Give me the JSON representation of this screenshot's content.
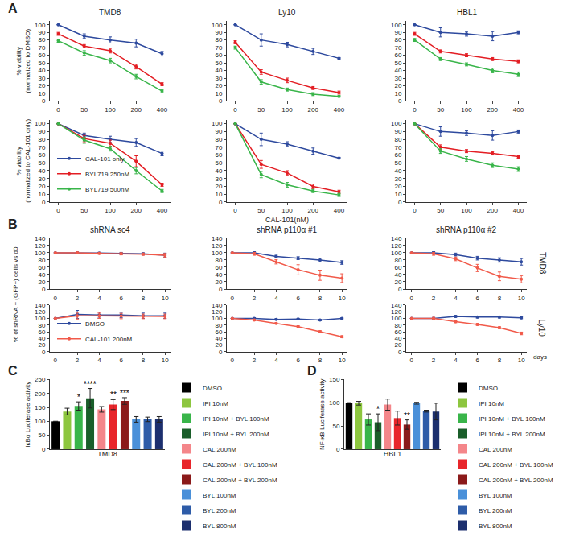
{
  "chart_data": [
    {
      "type": "line",
      "title": "TMD8",
      "categories": [
        "0",
        "50",
        "100",
        "200",
        "400"
      ],
      "ylim": [
        0,
        105
      ],
      "yticks": [
        0,
        10,
        20,
        30,
        40,
        50,
        60,
        70,
        80,
        90,
        100
      ],
      "grid": false,
      "marker": "circle",
      "ylabel": "% viability\n(normalized to DMSO)",
      "annotations": [
        "A"
      ],
      "series": [
        {
          "name": "CAL-101 only",
          "color": "#2e4a9e",
          "values": [
            100,
            85,
            80,
            76,
            62
          ],
          "errors": [
            0,
            3,
            4,
            5,
            3
          ]
        },
        {
          "name": "BYL719 250nM",
          "color": "#e31e24",
          "values": [
            88,
            72,
            66,
            45,
            22
          ],
          "errors": [
            2,
            2,
            3,
            3,
            2
          ]
        },
        {
          "name": "BYL719 500nM",
          "color": "#39b54a",
          "values": [
            79,
            63,
            53,
            32,
            13
          ],
          "errors": [
            2,
            3,
            3,
            3,
            2
          ]
        }
      ]
    },
    {
      "type": "line",
      "title": "Ly10",
      "categories": [
        "0",
        "50",
        "100",
        "200",
        "400"
      ],
      "ylim": [
        0,
        105
      ],
      "yticks": [
        0,
        10,
        20,
        30,
        40,
        50,
        60,
        70,
        80,
        90,
        100
      ],
      "grid": false,
      "marker": "circle",
      "series": [
        {
          "name": "CAL-101 only",
          "color": "#2e4a9e",
          "values": [
            100,
            80,
            74,
            65,
            56
          ],
          "errors": [
            0,
            8,
            3,
            4,
            1
          ]
        },
        {
          "name": "BYL719 250nM",
          "color": "#e31e24",
          "values": [
            77,
            38,
            27,
            17,
            11
          ],
          "errors": [
            2,
            3,
            3,
            2,
            2
          ]
        },
        {
          "name": "BYL719 500nM",
          "color": "#39b54a",
          "values": [
            70,
            25,
            15,
            9,
            6
          ],
          "errors": [
            2,
            3,
            2,
            2,
            1
          ]
        }
      ]
    },
    {
      "type": "line",
      "title": "HBL1",
      "categories": [
        "0",
        "50",
        "100",
        "200",
        "400"
      ],
      "ylim": [
        0,
        105
      ],
      "yticks": [
        0,
        10,
        20,
        30,
        40,
        50,
        60,
        70,
        80,
        90,
        100
      ],
      "grid": false,
      "marker": "circle",
      "series": [
        {
          "name": "CAL-101 only",
          "color": "#2e4a9e",
          "values": [
            100,
            90,
            88,
            85,
            90
          ],
          "errors": [
            0,
            6,
            3,
            6,
            2
          ]
        },
        {
          "name": "BYL719 250nM",
          "color": "#e31e24",
          "values": [
            88,
            65,
            60,
            55,
            52
          ],
          "errors": [
            2,
            2,
            2,
            2,
            2
          ]
        },
        {
          "name": "BYL719 500nM",
          "color": "#39b54a",
          "values": [
            80,
            55,
            48,
            40,
            35
          ],
          "errors": [
            2,
            2,
            2,
            3,
            3
          ]
        }
      ]
    },
    {
      "type": "line",
      "categories": [
        "0",
        "50",
        "100",
        "200",
        "400"
      ],
      "ylim": [
        0,
        105
      ],
      "yticks": [
        0,
        10,
        20,
        30,
        40,
        50,
        60,
        70,
        80,
        90,
        100
      ],
      "grid": false,
      "marker": "circle",
      "ylabel": "% viability\n(normalized to CAL-101 only)",
      "legend": "lower left",
      "series": [
        {
          "name": "CAL-101 only",
          "color": "#2e4a9e",
          "values": [
            100,
            85,
            80,
            76,
            62
          ],
          "errors": [
            0,
            3,
            4,
            5,
            3
          ]
        },
        {
          "name": "BYL719 250nM",
          "color": "#e31e24",
          "values": [
            100,
            81,
            75,
            52,
            22
          ],
          "errors": [
            0,
            4,
            4,
            7,
            2
          ]
        },
        {
          "name": "BYL719 500nM",
          "color": "#39b54a",
          "values": [
            100,
            79,
            68,
            40,
            14
          ],
          "errors": [
            0,
            4,
            3,
            4,
            2
          ]
        }
      ]
    },
    {
      "type": "line",
      "categories": [
        "0",
        "50",
        "100",
        "200",
        "400"
      ],
      "ylim": [
        0,
        105
      ],
      "yticks": [
        0,
        10,
        20,
        30,
        40,
        50,
        60,
        70,
        80,
        90,
        100
      ],
      "grid": false,
      "marker": "circle",
      "xlabel": "CAL-101(nM)",
      "series": [
        {
          "name": "CAL-101 only",
          "color": "#2e4a9e",
          "values": [
            100,
            80,
            74,
            65,
            56
          ],
          "errors": [
            0,
            8,
            3,
            4,
            1
          ]
        },
        {
          "name": "BYL719 250nM",
          "color": "#e31e24",
          "values": [
            100,
            48,
            37,
            20,
            13
          ],
          "errors": [
            0,
            5,
            3,
            3,
            2
          ]
        },
        {
          "name": "BYL719 500nM",
          "color": "#39b54a",
          "values": [
            100,
            35,
            22,
            14,
            9
          ],
          "errors": [
            0,
            4,
            3,
            2,
            2
          ]
        }
      ]
    },
    {
      "type": "line",
      "categories": [
        "0",
        "50",
        "100",
        "200",
        "400"
      ],
      "ylim": [
        0,
        105
      ],
      "yticks": [
        0,
        10,
        20,
        30,
        40,
        50,
        60,
        70,
        80,
        90,
        100
      ],
      "grid": false,
      "marker": "circle",
      "series": [
        {
          "name": "CAL-101 only",
          "color": "#2e4a9e",
          "values": [
            100,
            90,
            88,
            85,
            90
          ],
          "errors": [
            0,
            6,
            3,
            6,
            2
          ]
        },
        {
          "name": "BYL719 250nM",
          "color": "#e31e24",
          "values": [
            100,
            70,
            65,
            62,
            58
          ],
          "errors": [
            0,
            3,
            2,
            2,
            2
          ]
        },
        {
          "name": "BYL719 500nM",
          "color": "#39b54a",
          "values": [
            100,
            65,
            55,
            47,
            42
          ],
          "errors": [
            0,
            3,
            3,
            3,
            3
          ]
        }
      ]
    },
    {
      "type": "line",
      "title": "shRNA sc4",
      "x": [
        0,
        2,
        4,
        6,
        8,
        10
      ],
      "xlim": [
        -0.5,
        10.5
      ],
      "xticks": [
        0,
        2,
        4,
        6,
        8,
        10
      ],
      "ylim": [
        0,
        140
      ],
      "yticks": [
        0,
        20,
        40,
        60,
        80,
        100,
        120,
        140
      ],
      "grid": false,
      "marker": "circle",
      "ylabel": "% of shRNA + (GFP+) cells vs d0",
      "annotations": [
        "B"
      ],
      "series": [
        {
          "name": "DMSO",
          "color": "#2e4a9e",
          "values": [
            100,
            100,
            99,
            98,
            97,
            93
          ],
          "errors": [
            0,
            2,
            2,
            3,
            3,
            6
          ]
        },
        {
          "name": "CAL-101 200nM",
          "color": "#f15a4a",
          "values": [
            100,
            100,
            98,
            97,
            96,
            93
          ],
          "errors": [
            0,
            2,
            2,
            3,
            3,
            5
          ]
        }
      ]
    },
    {
      "type": "line",
      "title": "shRNA p110α #1",
      "x": [
        0,
        2,
        4,
        6,
        8,
        10
      ],
      "xlim": [
        -0.5,
        10.5
      ],
      "xticks": [
        0,
        2,
        4,
        6,
        8,
        10
      ],
      "ylim": [
        0,
        140
      ],
      "yticks": [
        0,
        20,
        40,
        60,
        80,
        100,
        120,
        140
      ],
      "grid": false,
      "marker": "circle",
      "series": [
        {
          "name": "DMSO",
          "color": "#2e4a9e",
          "values": [
            100,
            100,
            90,
            85,
            80,
            73
          ],
          "errors": [
            0,
            3,
            3,
            4,
            5,
            5
          ]
        },
        {
          "name": "CAL-101 200nM",
          "color": "#f15a4a",
          "values": [
            100,
            97,
            75,
            53,
            38,
            30
          ],
          "errors": [
            0,
            4,
            6,
            14,
            14,
            12
          ]
        }
      ]
    },
    {
      "type": "line",
      "title": "shRNA p110α #2",
      "x": [
        0,
        2,
        4,
        6,
        8,
        10
      ],
      "xlim": [
        -0.5,
        10.5
      ],
      "xticks": [
        0,
        2,
        4,
        6,
        8,
        10
      ],
      "ylim": [
        0,
        140
      ],
      "yticks": [
        0,
        20,
        40,
        60,
        80,
        100,
        120,
        140
      ],
      "grid": false,
      "marker": "circle",
      "annotations": [
        "TMD8"
      ],
      "series": [
        {
          "name": "DMSO",
          "color": "#2e4a9e",
          "values": [
            100,
            100,
            95,
            85,
            80,
            75
          ],
          "errors": [
            0,
            3,
            4,
            5,
            6,
            9
          ]
        },
        {
          "name": "CAL-101 200nM",
          "color": "#f15a4a",
          "values": [
            100,
            97,
            83,
            58,
            35,
            27
          ],
          "errors": [
            0,
            4,
            5,
            10,
            12,
            10
          ]
        }
      ]
    },
    {
      "type": "line",
      "x": [
        0,
        2,
        4,
        6,
        8,
        10
      ],
      "xlim": [
        -0.5,
        10.5
      ],
      "xticks": [
        0,
        2,
        4,
        6,
        8,
        10
      ],
      "ylim": [
        0,
        140
      ],
      "yticks": [
        0,
        20,
        40,
        60,
        80,
        100,
        120,
        140
      ],
      "grid": false,
      "marker": "circle",
      "legend": "lower left",
      "series": [
        {
          "name": "DMSO",
          "color": "#2e4a9e",
          "values": [
            100,
            112,
            110,
            110,
            108,
            108
          ],
          "errors": [
            0,
            12,
            9,
            8,
            8,
            8
          ]
        },
        {
          "name": "CAL-101 200nM",
          "color": "#f15a4a",
          "values": [
            100,
            108,
            108,
            107,
            106,
            106
          ],
          "errors": [
            0,
            10,
            8,
            8,
            7,
            7
          ]
        }
      ]
    },
    {
      "type": "line",
      "x": [
        0,
        2,
        4,
        6,
        8,
        10
      ],
      "xlim": [
        -0.5,
        10.5
      ],
      "xticks": [
        0,
        2,
        4,
        6,
        8,
        10
      ],
      "ylim": [
        0,
        140
      ],
      "yticks": [
        0,
        20,
        40,
        60,
        80,
        100,
        120,
        140
      ],
      "grid": false,
      "marker": "circle",
      "series": [
        {
          "name": "DMSO",
          "color": "#2e4a9e",
          "values": [
            100,
            100,
            97,
            98,
            95,
            100
          ],
          "errors": [
            0,
            2,
            2,
            2,
            2,
            2
          ]
        },
        {
          "name": "CAL-101 200nM",
          "color": "#f15a4a",
          "values": [
            100,
            95,
            85,
            75,
            60,
            45
          ],
          "errors": [
            0,
            2,
            2,
            3,
            3,
            3
          ]
        }
      ]
    },
    {
      "type": "line",
      "x": [
        0,
        2,
        4,
        6,
        8,
        10
      ],
      "xlim": [
        -0.5,
        10.5
      ],
      "xticks": [
        0,
        2,
        4,
        6,
        8,
        10
      ],
      "ylim": [
        0,
        140
      ],
      "yticks": [
        0,
        20,
        40,
        60,
        80,
        100,
        120,
        140
      ],
      "grid": false,
      "marker": "circle",
      "xlabel": "days",
      "annotations": [
        "Ly10"
      ],
      "series": [
        {
          "name": "DMSO",
          "color": "#2e4a9e",
          "values": [
            100,
            100,
            106,
            104,
            104,
            102
          ],
          "errors": [
            0,
            3,
            3,
            3,
            3,
            3
          ]
        },
        {
          "name": "CAL-101 200nM",
          "color": "#f15a4a",
          "values": [
            100,
            100,
            90,
            82,
            72,
            55
          ],
          "errors": [
            0,
            3,
            3,
            3,
            3,
            4
          ]
        }
      ]
    },
    {
      "type": "bar",
      "categories": [
        "DMSO",
        "IPI 10nM",
        "IPI 10nM + BYL 100nM",
        "IPI 10nM + BYL 200nM",
        "CAL 200nM",
        "CAL 200nM + BYL 100nM",
        "CAL 200nM + BYL 200nM",
        "BYL 100nM",
        "BYL 200nM",
        "BYL 800nM"
      ],
      "values": [
        100,
        135,
        155,
        183,
        143,
        160,
        173,
        107,
        107,
        107
      ],
      "errors": [
        0,
        12,
        15,
        35,
        10,
        18,
        12,
        10,
        8,
        10
      ],
      "colors": [
        "#000000",
        "#8dc63f",
        "#39b54a",
        "#1a5e2a",
        "#f4868a",
        "#e8262b",
        "#8b1a1a",
        "#4a90d9",
        "#2e5ca8",
        "#1c2f6e"
      ],
      "ylim": [
        0,
        250
      ],
      "yticks": [
        0,
        50,
        100,
        150,
        200,
        250
      ],
      "grid": false,
      "tick_labels": "y",
      "legend": "right",
      "ylabel": "IκBα Luciferase activity",
      "xlabel": "TMD8",
      "annotations": [
        "C",
        {
          "category": 2,
          "text": "*"
        },
        {
          "category": 3,
          "text": "****"
        },
        {
          "category": 5,
          "text": "**"
        },
        {
          "category": 6,
          "text": "***"
        }
      ]
    },
    {
      "type": "bar",
      "categories": [
        "DMSO",
        "IPI 10nM",
        "IPI 10nM + BYL 100nM",
        "IPI 10nM + BYL 200nM",
        "CAL 200nM",
        "CAL 200nM + BYL 100nM",
        "CAL 200nM + BYL 200nM",
        "BYL 100nM",
        "BYL 200nM",
        "BYL 800nM"
      ],
      "values": [
        100,
        99,
        64,
        58,
        96,
        67,
        53,
        99,
        82,
        81
      ],
      "errors": [
        0,
        4,
        12,
        18,
        12,
        15,
        10,
        2,
        2,
        18
      ],
      "colors": [
        "#000000",
        "#8dc63f",
        "#39b54a",
        "#1a5e2a",
        "#f4868a",
        "#e8262b",
        "#8b1a1a",
        "#4a90d9",
        "#2e5ca8",
        "#1c2f6e"
      ],
      "ylim": [
        0,
        150
      ],
      "yticks": [
        0,
        50,
        100,
        150
      ],
      "grid": false,
      "tick_labels": "y",
      "legend": "right",
      "ylabel": "NF-κB Luciferase activity",
      "xlabel": "HBL1",
      "annotations": [
        "D",
        {
          "category": 3,
          "text": "*"
        },
        {
          "category": 6,
          "text": "**"
        }
      ]
    }
  ]
}
